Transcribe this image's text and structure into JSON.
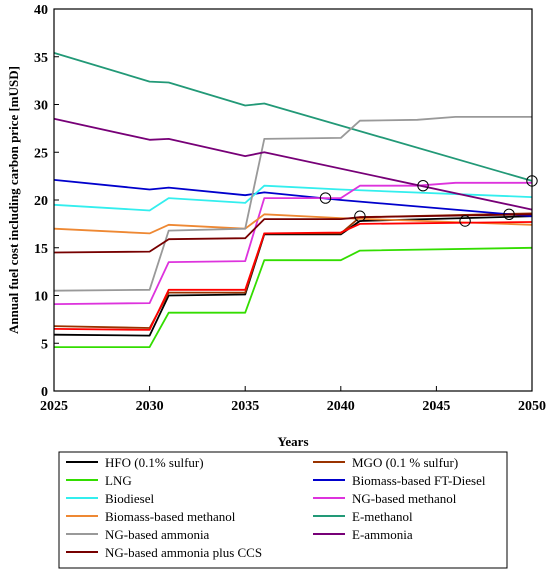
{
  "chart_data": {
    "type": "line",
    "xlabel": "Years",
    "ylabel": "Annual fuel cost including carbon price [mUSD]",
    "xlim": [
      2025,
      2050
    ],
    "ylim": [
      0,
      40
    ],
    "xticks": [
      2025,
      2030,
      2035,
      2040,
      2045,
      2050
    ],
    "yticks": [
      0,
      5,
      10,
      15,
      20,
      25,
      30,
      35,
      40
    ],
    "grid": false,
    "legend_position": "bottom",
    "series": [
      {
        "name": "HFO (0.1% sulfur)",
        "color": "#000000",
        "x": [
          2025,
          2030,
          2031,
          2035,
          2036,
          2040,
          2041,
          2050
        ],
        "y": [
          5.9,
          5.8,
          10.0,
          10.1,
          16.4,
          16.4,
          17.8,
          18.3
        ]
      },
      {
        "name": "MGO (0.1 % sulfur)",
        "color": "#993300",
        "x": [
          2025,
          2030,
          2031,
          2035,
          2036,
          2040,
          2041,
          2050
        ],
        "y": [
          6.8,
          6.6,
          10.3,
          10.3,
          16.5,
          16.5,
          18.2,
          18.6
        ]
      },
      {
        "name": "LNG",
        "color": "#33dd00",
        "x": [
          2025,
          2030,
          2031,
          2035,
          2036,
          2040,
          2041,
          2050
        ],
        "y": [
          4.6,
          4.6,
          8.2,
          8.2,
          13.7,
          13.7,
          14.7,
          15.0
        ]
      },
      {
        "name": "Biomass-based FT-Diesel",
        "color": "#0000cc",
        "x": [
          2025,
          2030,
          2031,
          2035,
          2036,
          2040,
          2050
        ],
        "y": [
          22.1,
          21.1,
          21.3,
          20.5,
          20.8,
          20.0,
          18.3
        ]
      },
      {
        "name": "Biodiesel",
        "color": "#33eeee",
        "x": [
          2025,
          2030,
          2031,
          2035,
          2036,
          2040,
          2050
        ],
        "y": [
          19.5,
          18.9,
          20.2,
          19.7,
          21.5,
          21.1,
          20.3
        ]
      },
      {
        "name": "NG-based methanol",
        "color": "#dd33dd",
        "x": [
          2025,
          2030,
          2031,
          2035,
          2036,
          2040,
          2041,
          2044,
          2046,
          2050
        ],
        "y": [
          9.1,
          9.2,
          13.5,
          13.6,
          20.2,
          20.2,
          21.5,
          21.5,
          21.8,
          21.8
        ]
      },
      {
        "name": "Biomass-based methanol",
        "color": "#ee8833",
        "x": [
          2025,
          2030,
          2031,
          2035,
          2036,
          2040,
          2050
        ],
        "y": [
          17.0,
          16.5,
          17.4,
          17.0,
          18.5,
          18.1,
          17.4
        ]
      },
      {
        "name": "E-methanol",
        "color": "#229977",
        "x": [
          2025,
          2030,
          2031,
          2035,
          2036,
          2050
        ],
        "y": [
          35.4,
          32.4,
          32.3,
          29.9,
          30.1,
          22.0
        ]
      },
      {
        "name": "NG-based ammonia",
        "color": "#999999",
        "x": [
          2025,
          2030,
          2031,
          2035,
          2036,
          2040,
          2041,
          2044,
          2046,
          2050
        ],
        "y": [
          10.5,
          10.6,
          16.8,
          17.0,
          26.4,
          26.5,
          28.3,
          28.4,
          28.7,
          28.7
        ]
      },
      {
        "name": "E-ammonia",
        "color": "#770077",
        "x": [
          2025,
          2030,
          2031,
          2035,
          2036,
          2050
        ],
        "y": [
          28.5,
          26.3,
          26.4,
          24.6,
          25.0,
          19.0
        ]
      },
      {
        "name": "NG-based ammonia plus CCS",
        "color": "#770000",
        "x": [
          2025,
          2030,
          2031,
          2035,
          2036,
          2040,
          2041,
          2050
        ],
        "y": [
          14.5,
          14.6,
          15.9,
          16.0,
          18.0,
          18.0,
          18.2,
          18.5
        ]
      },
      {
        "name": "",
        "color": "#ff0000",
        "x": [
          2025,
          2030,
          2031,
          2035,
          2036,
          2040,
          2041,
          2050
        ],
        "y": [
          6.5,
          6.4,
          10.6,
          10.6,
          16.5,
          16.6,
          17.5,
          17.7
        ]
      }
    ],
    "annotations": [
      {
        "type": "circle",
        "x": 2039.2,
        "y": 20.2
      },
      {
        "type": "circle",
        "x": 2041.0,
        "y": 18.3
      },
      {
        "type": "circle",
        "x": 2044.3,
        "y": 21.5
      },
      {
        "type": "circle",
        "x": 2046.5,
        "y": 17.8
      },
      {
        "type": "circle",
        "x": 2048.8,
        "y": 18.5
      },
      {
        "type": "circle",
        "x": 2050.0,
        "y": 22.0
      }
    ]
  }
}
